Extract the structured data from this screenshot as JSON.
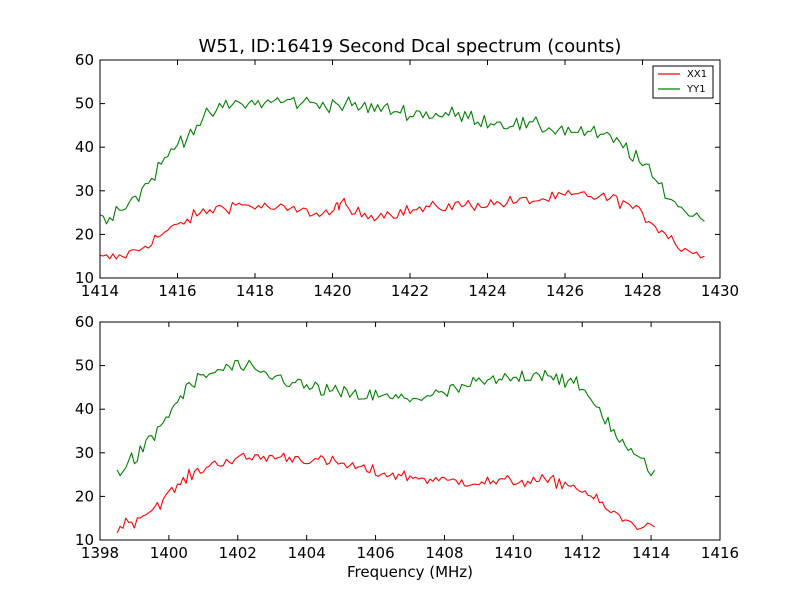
{
  "chart_data": [
    {
      "type": "line",
      "title": "W51, ID:16419 Second Dcal spectrum (counts)",
      "xlabel": "",
      "ylabel": "",
      "xlim": [
        1414,
        1430
      ],
      "ylim": [
        10,
        60
      ],
      "xticks": [
        "1414",
        "1416",
        "1418",
        "1420",
        "1422",
        "1424",
        "1426",
        "1428",
        "1430"
      ],
      "yticks": [
        "10",
        "20",
        "30",
        "40",
        "50",
        "60"
      ],
      "legend": {
        "placement": "top-right",
        "entries": [
          "XX1",
          "YY1"
        ]
      },
      "grid": false,
      "series": [
        {
          "name": "XX1",
          "color": "#ff0000",
          "x": [
            1414.0,
            1414.5,
            1415.0,
            1415.5,
            1416.0,
            1416.5,
            1417.0,
            1417.5,
            1418.0,
            1418.5,
            1419.0,
            1419.5,
            1420.0,
            1420.2,
            1420.5,
            1421.0,
            1421.5,
            1422.0,
            1422.5,
            1423.0,
            1423.5,
            1424.0,
            1424.5,
            1425.0,
            1425.5,
            1426.0,
            1426.5,
            1427.0,
            1427.5,
            1428.0,
            1428.5,
            1429.0,
            1429.6
          ],
          "y": [
            14.5,
            14.8,
            16.5,
            19.5,
            22.0,
            24.5,
            26.0,
            26.8,
            26.5,
            26.0,
            25.5,
            25.0,
            25.0,
            27.5,
            25.0,
            24.5,
            24.8,
            25.5,
            26.0,
            26.5,
            26.8,
            27.0,
            27.3,
            27.7,
            28.0,
            28.8,
            29.0,
            28.5,
            27.5,
            24.5,
            21.0,
            17.0,
            15.0
          ]
        },
        {
          "name": "YY1",
          "color": "#008000",
          "x": [
            1414.0,
            1414.5,
            1415.0,
            1415.5,
            1416.0,
            1416.5,
            1417.0,
            1417.5,
            1418.0,
            1418.5,
            1419.0,
            1419.5,
            1420.0,
            1420.5,
            1421.0,
            1421.5,
            1422.0,
            1422.5,
            1423.0,
            1423.5,
            1424.0,
            1424.5,
            1425.0,
            1425.5,
            1426.0,
            1426.5,
            1427.0,
            1427.5,
            1428.0,
            1428.5,
            1429.0,
            1429.6
          ],
          "y": [
            23.5,
            26.0,
            29.0,
            35.0,
            41.0,
            45.0,
            48.5,
            50.0,
            50.0,
            50.5,
            50.5,
            50.0,
            50.0,
            49.5,
            49.0,
            48.5,
            48.0,
            47.5,
            47.5,
            47.0,
            46.0,
            45.5,
            45.0,
            44.5,
            44.0,
            43.5,
            42.5,
            40.5,
            36.0,
            30.5,
            26.0,
            23.0
          ]
        }
      ]
    },
    {
      "type": "line",
      "title": "",
      "xlabel": "Frequency (MHz)",
      "ylabel": "",
      "xlim": [
        1398,
        1416
      ],
      "ylim": [
        10,
        60
      ],
      "xticks": [
        "1398",
        "1400",
        "1402",
        "1404",
        "1406",
        "1408",
        "1410",
        "1412",
        "1414",
        "1416"
      ],
      "yticks": [
        "10",
        "20",
        "30",
        "40",
        "50",
        "60"
      ],
      "grid": false,
      "series": [
        {
          "color": "#ff0000",
          "x": [
            1398.5,
            1399.0,
            1399.5,
            1400.0,
            1400.5,
            1401.0,
            1401.5,
            1402.0,
            1402.5,
            1403.0,
            1403.5,
            1404.0,
            1404.5,
            1405.0,
            1405.5,
            1406.0,
            1406.5,
            1407.0,
            1407.5,
            1408.0,
            1408.5,
            1409.0,
            1409.5,
            1410.0,
            1410.5,
            1411.0,
            1411.5,
            1412.0,
            1412.5,
            1413.0,
            1413.5,
            1414.1
          ],
          "y": [
            13.0,
            14.5,
            17.0,
            20.5,
            24.0,
            26.5,
            28.0,
            28.5,
            29.0,
            29.0,
            29.0,
            28.5,
            28.0,
            27.5,
            26.5,
            25.5,
            25.0,
            24.5,
            24.0,
            23.5,
            23.5,
            23.3,
            23.3,
            23.5,
            23.5,
            23.5,
            23.0,
            21.5,
            18.5,
            15.5,
            13.5,
            13.0
          ]
        },
        {
          "color": "#008000",
          "x": [
            1398.5,
            1399.0,
            1399.5,
            1400.0,
            1400.5,
            1401.0,
            1401.5,
            1402.0,
            1402.5,
            1403.0,
            1403.5,
            1404.0,
            1404.5,
            1405.0,
            1405.5,
            1406.0,
            1406.5,
            1407.0,
            1407.5,
            1408.0,
            1408.5,
            1409.0,
            1409.5,
            1410.0,
            1410.5,
            1411.0,
            1411.5,
            1412.0,
            1412.5,
            1413.0,
            1413.5,
            1414.1
          ],
          "y": [
            26.0,
            28.5,
            33.0,
            39.0,
            44.5,
            47.5,
            49.0,
            50.0,
            48.5,
            47.5,
            46.5,
            45.0,
            44.5,
            43.5,
            43.0,
            43.0,
            42.5,
            42.5,
            43.0,
            43.5,
            45.0,
            46.0,
            46.5,
            47.0,
            48.0,
            48.5,
            46.5,
            44.5,
            40.0,
            34.0,
            29.0,
            26.0
          ]
        }
      ]
    }
  ]
}
